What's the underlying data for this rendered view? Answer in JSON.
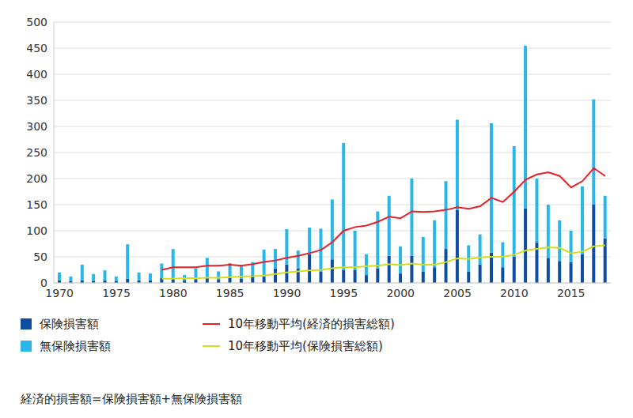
{
  "chart_data": {
    "type": "bar",
    "stacked": true,
    "grid": true,
    "legend": "bottom",
    "categories": [
      1970,
      null,
      null,
      null,
      null,
      1975,
      null,
      null,
      null,
      null,
      1980,
      null,
      null,
      null,
      null,
      1985,
      null,
      null,
      null,
      null,
      1990,
      null,
      null,
      null,
      null,
      1995,
      null,
      null,
      null,
      null,
      2000,
      null,
      null,
      null,
      null,
      2005,
      null,
      null,
      null,
      null,
      2010,
      null,
      null,
      null,
      null,
      2015,
      null,
      null,
      null
    ],
    "ylim": [
      0,
      500
    ],
    "yticks": [
      0,
      50,
      100,
      150,
      200,
      250,
      300,
      350,
      400,
      450,
      500
    ],
    "note": "経済的損害額=保険損害額+無保険損害額",
    "series": [
      {
        "name": "保険損害額",
        "type": "bar",
        "color": "#0d4ea0",
        "values": [
          5,
          3,
          5,
          4,
          5,
          4,
          8,
          5,
          5,
          10,
          8,
          5,
          7,
          10,
          7,
          10,
          8,
          15,
          12,
          28,
          35,
          28,
          55,
          22,
          45,
          25,
          25,
          15,
          28,
          52,
          18,
          52,
          22,
          30,
          65,
          140,
          22,
          35,
          58,
          30,
          50,
          143,
          78,
          48,
          42,
          40,
          55,
          150,
          85
        ]
      },
      {
        "name": "無保険損害額",
        "type": "bar",
        "color": "#29b6e8",
        "values": [
          15,
          9,
          30,
          13,
          19,
          8,
          66,
          15,
          13,
          27,
          57,
          10,
          21,
          38,
          15,
          28,
          24,
          25,
          52,
          37,
          68,
          34,
          51,
          82,
          115,
          243,
          75,
          40,
          109,
          115,
          52,
          148,
          66,
          90,
          130,
          173,
          50,
          58,
          248,
          48,
          212,
          312,
          122,
          102,
          78,
          60,
          130,
          202,
          82
        ]
      },
      {
        "name": "10年移動平均(経済的損害総額)",
        "type": "line",
        "color": "#e8202a",
        "values": [
          null,
          null,
          null,
          null,
          null,
          null,
          null,
          null,
          null,
          25,
          30,
          30,
          30,
          33,
          33,
          35,
          33,
          36,
          40,
          43,
          48,
          52,
          57,
          63,
          78,
          100,
          107,
          110,
          117,
          127,
          124,
          137,
          136,
          137,
          140,
          145,
          142,
          147,
          163,
          155,
          175,
          198,
          208,
          212,
          205,
          183,
          195,
          220,
          205
        ]
      },
      {
        "name": "10年移動平均(保険損害総額)",
        "type": "line",
        "color": "#d4dc1e",
        "values": [
          null,
          null,
          null,
          null,
          null,
          null,
          null,
          null,
          null,
          8,
          8,
          9,
          9,
          10,
          10,
          11,
          12,
          13,
          14,
          17,
          20,
          22,
          24,
          25,
          28,
          30,
          30,
          32,
          33,
          36,
          34,
          37,
          35,
          35,
          40,
          47,
          46,
          49,
          50,
          50,
          54,
          62,
          65,
          68,
          67,
          57,
          60,
          70,
          72
        ]
      }
    ]
  }
}
